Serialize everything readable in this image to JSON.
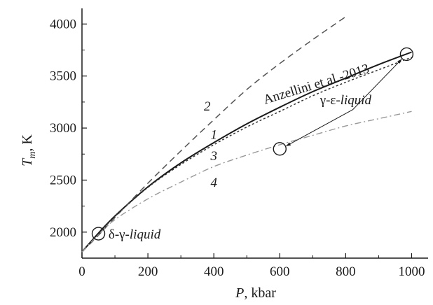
{
  "chart_data": {
    "type": "line",
    "xlabel_italic": "P",
    "xlabel_rest": ", kbar",
    "ylabel_italic": "T",
    "ylabel_sub": "m",
    "ylabel_rest": ", K",
    "xlim": [
      0,
      1050
    ],
    "ylim": [
      1750,
      4150
    ],
    "xticks": [
      0,
      200,
      400,
      600,
      800,
      1000
    ],
    "yticks": [
      2000,
      2500,
      3000,
      3500,
      4000
    ],
    "grid": false,
    "series": [
      {
        "name": "1",
        "label": "Anzellini et al.-2013",
        "style": "solid",
        "color": "#1a1a1a",
        "x": [
          0,
          50,
          100,
          200,
          300,
          400,
          500,
          600,
          700,
          800,
          900,
          1000
        ],
        "y": [
          1810,
          1990,
          2155,
          2435,
          2665,
          2860,
          3040,
          3200,
          3350,
          3480,
          3610,
          3730
        ]
      },
      {
        "name": "2",
        "style": "dashed",
        "color": "#555555",
        "x": [
          0,
          50,
          100,
          200,
          300,
          400,
          500,
          600,
          700,
          800
        ],
        "y": [
          1810,
          1970,
          2140,
          2470,
          2780,
          3080,
          3370,
          3620,
          3850,
          4070
        ]
      },
      {
        "name": "3",
        "style": "dotted",
        "color": "#333333",
        "x": [
          0,
          50,
          100,
          200,
          300,
          400,
          500,
          600,
          700,
          800,
          900,
          1000
        ],
        "y": [
          1810,
          1980,
          2150,
          2430,
          2650,
          2840,
          3010,
          3160,
          3310,
          3440,
          3560,
          3680
        ]
      },
      {
        "name": "4",
        "style": "dashdot",
        "color": "#999999",
        "x": [
          0,
          50,
          100,
          200,
          300,
          400,
          500,
          600,
          700,
          800,
          900,
          1000
        ],
        "y": [
          1810,
          1975,
          2120,
          2320,
          2480,
          2630,
          2740,
          2840,
          2930,
          3020,
          3090,
          3160
        ]
      }
    ],
    "points": [
      {
        "x": 50,
        "y": 1985
      },
      {
        "x": 600,
        "y": 2800
      },
      {
        "x": 985,
        "y": 3710
      }
    ],
    "annotations": [
      {
        "label": "δ-γ-",
        "label_italic": "liquid",
        "x": 55,
        "y": 1985
      },
      {
        "label": "γ-ε-",
        "label_italic": "liquid",
        "x": 800,
        "y": 3230
      }
    ],
    "curve_labels": [
      {
        "text": "1",
        "x": 400,
        "y": 2935
      },
      {
        "text": "2",
        "x": 380,
        "y": 3210
      },
      {
        "text": "3",
        "x": 400,
        "y": 2730
      },
      {
        "text": "4",
        "x": 400,
        "y": 2475
      }
    ],
    "anzellini_label": "Anzellini et al.-2013"
  }
}
